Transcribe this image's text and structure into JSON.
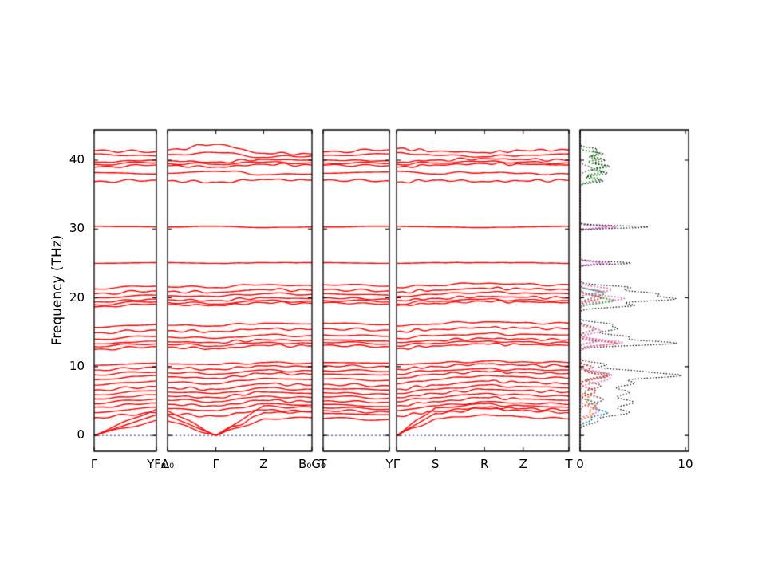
{
  "chart_data": {
    "type": "line",
    "title": "",
    "description": "Phonon band structure (red curves, four k-path segments) with projected density of states panel at right",
    "ylabel": "Frequency (THz)",
    "ylim": [
      -2.3,
      44.4
    ],
    "y_ticks": [
      0,
      10,
      20,
      30,
      40
    ],
    "band_color": "#ff0000",
    "zero_line_color": "#2222cc",
    "frame_color": "#000000",
    "panels": [
      {
        "name": "segment-1",
        "ticks": [
          {
            "label": "Γ",
            "pos": 0
          },
          {
            "label": "YF₀",
            "pos": 1
          }
        ]
      },
      {
        "name": "segment-2",
        "ticks": [
          {
            "label": "Δ₀",
            "pos": 0
          },
          {
            "label": "Γ",
            "pos": 0.335
          },
          {
            "label": "Z",
            "pos": 0.665
          },
          {
            "label": "B₀G₀",
            "pos": 1
          }
        ]
      },
      {
        "name": "segment-3",
        "ticks": [
          {
            "label": "T",
            "pos": 0
          },
          {
            "label": "Y",
            "pos": 1
          }
        ]
      },
      {
        "name": "segment-4",
        "ticks": [
          {
            "label": "Γ",
            "pos": 0
          },
          {
            "label": "S",
            "pos": 0.225
          },
          {
            "label": "R",
            "pos": 0.51
          },
          {
            "label": "Z",
            "pos": 0.735
          },
          {
            "label": "T",
            "pos": 1
          }
        ]
      }
    ],
    "bands_node_order": [
      "Γ",
      "YF₀",
      "Δ₀",
      "Γ",
      "Z",
      "B₀G₀",
      "T",
      "Y",
      "Γ",
      "S",
      "R",
      "Z",
      "T"
    ],
    "bands": [
      [
        0,
        2.2,
        2.1,
        0,
        2.4,
        2.6,
        2.5,
        2.3,
        0,
        2.4,
        3.0,
        2.7,
        2.4
      ],
      [
        0,
        3.0,
        2.9,
        0,
        3.3,
        3.4,
        3.2,
        3.0,
        0,
        3.2,
        3.9,
        3.6,
        3.3
      ],
      [
        0,
        3.8,
        3.6,
        0,
        4.3,
        4.1,
        4.0,
        3.8,
        0,
        4.0,
        4.6,
        4.3,
        4.1
      ],
      [
        2.6,
        3.3,
        3.1,
        2.8,
        3.7,
        3.5,
        3.6,
        3.4,
        2.8,
        3.5,
        4.1,
        3.9,
        3.7
      ],
      [
        3.3,
        4.1,
        3.9,
        3.6,
        4.6,
        4.4,
        4.5,
        4.2,
        3.6,
        4.3,
        4.9,
        4.7,
        4.5
      ],
      [
        4.1,
        4.7,
        4.5,
        4.3,
        5.1,
        4.9,
        5.0,
        4.8,
        4.3,
        4.9,
        5.5,
        5.3,
        5.1
      ],
      [
        4.6,
        5.3,
        5.1,
        4.9,
        5.7,
        5.5,
        5.6,
        5.4,
        4.9,
        5.5,
        6.1,
        5.9,
        5.7
      ],
      [
        5.3,
        5.9,
        5.7,
        5.5,
        6.3,
        6.1,
        6.2,
        6.0,
        5.5,
        6.1,
        6.7,
        6.5,
        6.3
      ],
      [
        5.9,
        6.5,
        6.3,
        6.1,
        6.9,
        6.7,
        6.8,
        6.6,
        6.1,
        6.7,
        7.3,
        7.1,
        6.9
      ],
      [
        6.6,
        7.1,
        6.9,
        6.7,
        7.5,
        7.3,
        7.4,
        7.2,
        6.7,
        7.3,
        7.9,
        7.7,
        7.5
      ],
      [
        7.3,
        7.9,
        7.7,
        7.5,
        8.3,
        8.1,
        8.2,
        8.0,
        7.5,
        8.1,
        8.7,
        8.5,
        8.3
      ],
      [
        8.1,
        8.7,
        8.5,
        8.3,
        9.0,
        8.9,
        8.9,
        8.8,
        8.3,
        8.9,
        9.3,
        9.1,
        9.0
      ],
      [
        8.8,
        9.2,
        9.1,
        8.9,
        9.5,
        9.4,
        9.4,
        9.3,
        8.9,
        9.4,
        9.7,
        9.6,
        9.5
      ],
      [
        9.5,
        9.9,
        9.8,
        9.6,
        10.1,
        10.0,
        10.1,
        10.0,
        9.6,
        10.0,
        10.4,
        10.2,
        10.1
      ],
      [
        10.2,
        10.5,
        10.4,
        10.3,
        10.6,
        10.5,
        10.6,
        10.5,
        10.3,
        10.5,
        10.8,
        10.7,
        10.6
      ],
      [
        12.5,
        12.9,
        12.8,
        12.6,
        13.1,
        13.0,
        13.1,
        12.9,
        12.6,
        13.0,
        13.3,
        13.2,
        13.1
      ],
      [
        12.9,
        13.3,
        13.2,
        13.0,
        13.5,
        13.4,
        13.5,
        13.3,
        13.0,
        13.4,
        13.7,
        13.6,
        13.5
      ],
      [
        13.3,
        13.7,
        13.6,
        13.5,
        13.9,
        13.8,
        13.9,
        13.7,
        13.5,
        13.8,
        14.1,
        14.0,
        13.9
      ],
      [
        14.0,
        14.4,
        14.3,
        14.1,
        14.6,
        14.5,
        14.6,
        14.4,
        14.1,
        14.5,
        14.8,
        14.7,
        14.6
      ],
      [
        14.9,
        15.3,
        15.2,
        15.1,
        15.5,
        15.4,
        15.5,
        15.3,
        15.1,
        15.4,
        15.7,
        15.6,
        15.5
      ],
      [
        15.7,
        16.1,
        16.0,
        15.9,
        16.3,
        16.2,
        16.3,
        16.1,
        15.9,
        16.2,
        16.5,
        16.4,
        16.3
      ],
      [
        18.7,
        19.1,
        19.0,
        18.9,
        19.3,
        19.2,
        19.3,
        19.1,
        18.9,
        19.2,
        19.5,
        19.4,
        19.3
      ],
      [
        19.0,
        19.4,
        19.3,
        19.1,
        19.6,
        19.5,
        19.6,
        19.4,
        19.1,
        19.5,
        19.8,
        19.7,
        19.6
      ],
      [
        19.4,
        19.8,
        19.7,
        19.6,
        20.0,
        19.9,
        20.0,
        19.8,
        19.6,
        19.9,
        20.2,
        20.1,
        20.0
      ],
      [
        20.0,
        20.4,
        20.3,
        20.2,
        20.6,
        20.5,
        20.6,
        20.4,
        20.2,
        20.5,
        20.8,
        20.7,
        20.6
      ],
      [
        20.6,
        21.0,
        20.9,
        20.8,
        21.2,
        21.1,
        21.2,
        21.0,
        20.8,
        21.1,
        21.4,
        21.3,
        21.2
      ],
      [
        21.3,
        21.7,
        21.6,
        21.5,
        21.9,
        21.8,
        21.9,
        21.7,
        21.5,
        21.8,
        22.1,
        22.0,
        21.9
      ],
      [
        25.0,
        25.1,
        25.1,
        25.0,
        25.1,
        25.1,
        25.1,
        25.0,
        25.0,
        25.1,
        25.1,
        25.1,
        25.0
      ],
      [
        30.4,
        30.3,
        30.3,
        30.4,
        30.2,
        30.3,
        30.3,
        30.4,
        30.4,
        30.3,
        30.2,
        30.3,
        30.4
      ],
      [
        36.9,
        37.1,
        37.0,
        36.8,
        37.2,
        37.1,
        37.1,
        37.0,
        36.8,
        37.1,
        36.9,
        37.0,
        37.1
      ],
      [
        38.2,
        38.0,
        38.1,
        38.4,
        37.9,
        38.0,
        38.1,
        38.3,
        38.4,
        38.0,
        38.2,
        38.1,
        38.0
      ],
      [
        39.0,
        39.3,
        39.2,
        39.0,
        39.4,
        39.3,
        39.3,
        39.2,
        39.0,
        39.3,
        39.5,
        39.4,
        39.3
      ],
      [
        39.4,
        39.6,
        39.5,
        39.4,
        39.7,
        39.6,
        39.6,
        39.5,
        39.4,
        39.6,
        39.8,
        39.7,
        39.6
      ],
      [
        39.7,
        40.0,
        39.9,
        39.7,
        40.1,
        40.0,
        40.0,
        39.9,
        39.7,
        40.0,
        40.2,
        40.1,
        40.0
      ],
      [
        40.9,
        40.6,
        40.8,
        41.1,
        40.4,
        40.6,
        40.7,
        40.9,
        41.1,
        40.7,
        40.5,
        40.7,
        40.9
      ],
      [
        41.4,
        41.2,
        41.5,
        42.3,
        41.0,
        40.9,
        41.2,
        41.5,
        41.7,
        41.3,
        41.1,
        41.4,
        41.5
      ]
    ],
    "dos": {
      "xlim": [
        0,
        10.3
      ],
      "x_ticks": [
        {
          "label": "0",
          "value": 0
        },
        {
          "label": "10",
          "value": 10
        }
      ],
      "total": {
        "color": "#000000",
        "style": "dotted",
        "peaks": [
          [
            2.0,
            1.5,
            0.5
          ],
          [
            3.3,
            4.5,
            0.7
          ],
          [
            4.8,
            5.0,
            0.8
          ],
          [
            6.3,
            4.5,
            0.7
          ],
          [
            7.6,
            5.0,
            0.6
          ],
          [
            8.7,
            9.3,
            0.5
          ],
          [
            9.4,
            4.0,
            0.4
          ],
          [
            10.3,
            2.5,
            0.4
          ],
          [
            13.4,
            9.0,
            0.45
          ],
          [
            14.3,
            4.5,
            0.5
          ],
          [
            15.5,
            3.5,
            0.5
          ],
          [
            16.2,
            2.5,
            0.35
          ],
          [
            18.9,
            5.0,
            0.4
          ],
          [
            19.8,
            8.5,
            0.45
          ],
          [
            20.6,
            7.0,
            0.5
          ],
          [
            21.5,
            4.5,
            0.4
          ],
          [
            25.05,
            5.0,
            0.25
          ],
          [
            30.3,
            6.5,
            0.25
          ],
          [
            37.0,
            2.2,
            0.35
          ],
          [
            38.1,
            2.6,
            0.4
          ],
          [
            39.1,
            2.8,
            0.4
          ],
          [
            40.0,
            2.4,
            0.35
          ],
          [
            40.9,
            2.2,
            0.35
          ],
          [
            41.6,
            1.6,
            0.3
          ]
        ]
      },
      "projections": [
        {
          "name": "pdos-blue",
          "color": "#1f77b4",
          "peaks": [
            [
              2.2,
              1.0,
              0.4
            ],
            [
              3.3,
              2.6,
              0.6
            ],
            [
              4.6,
              1.6,
              0.6
            ]
          ]
        },
        {
          "name": "pdos-orange",
          "color": "#ff7f0e",
          "peaks": [
            [
              3.0,
              1.2,
              0.5
            ],
            [
              4.2,
              1.6,
              0.6
            ],
            [
              5.5,
              0.8,
              0.5
            ]
          ]
        },
        {
          "name": "pdos-green",
          "color": "#2ca02c",
          "peaks": [
            [
              19.6,
              3.2,
              0.5
            ],
            [
              20.7,
              2.4,
              0.5
            ],
            [
              37.2,
              2.0,
              0.4
            ],
            [
              38.3,
              2.2,
              0.4
            ],
            [
              39.2,
              2.4,
              0.4
            ],
            [
              40.2,
              2.0,
              0.35
            ],
            [
              41.0,
              1.8,
              0.35
            ]
          ]
        },
        {
          "name": "pdos-red",
          "color": "#d62728",
          "peaks": [
            [
              6.4,
              1.5,
              0.6
            ],
            [
              8.6,
              2.6,
              0.5
            ],
            [
              9.9,
              1.2,
              0.4
            ],
            [
              13.4,
              3.5,
              0.4
            ],
            [
              20.0,
              2.0,
              0.5
            ]
          ]
        },
        {
          "name": "pdos-violet",
          "color": "#9467bd",
          "peaks": [
            [
              13.8,
              1.8,
              0.4
            ],
            [
              20.9,
              2.0,
              0.4
            ],
            [
              25.05,
              2.2,
              0.25
            ],
            [
              30.3,
              2.6,
              0.25
            ]
          ]
        },
        {
          "name": "pdos-brown",
          "color": "#8c564b",
          "peaks": [
            [
              5.2,
              2.2,
              0.7
            ],
            [
              7.2,
              2.0,
              0.6
            ],
            [
              8.8,
              2.8,
              0.5
            ],
            [
              15.5,
              1.5,
              0.5
            ]
          ]
        },
        {
          "name": "pdos-pink",
          "color": "#e377c2",
          "peaks": [
            [
              3.6,
              1.8,
              0.7
            ],
            [
              8.2,
              2.6,
              0.7
            ],
            [
              9.0,
              2.0,
              0.5
            ],
            [
              13.5,
              4.0,
              0.5
            ],
            [
              15.2,
              2.0,
              0.5
            ],
            [
              19.9,
              4.2,
              0.5
            ],
            [
              21.2,
              3.0,
              0.5
            ],
            [
              25.05,
              3.0,
              0.25
            ],
            [
              30.3,
              3.4,
              0.25
            ]
          ]
        },
        {
          "name": "pdos-gray",
          "color": "#7f7f7f",
          "peaks": [
            [
              20.2,
              1.5,
              0.5
            ],
            [
              38.8,
              1.2,
              0.5
            ]
          ]
        }
      ]
    }
  }
}
